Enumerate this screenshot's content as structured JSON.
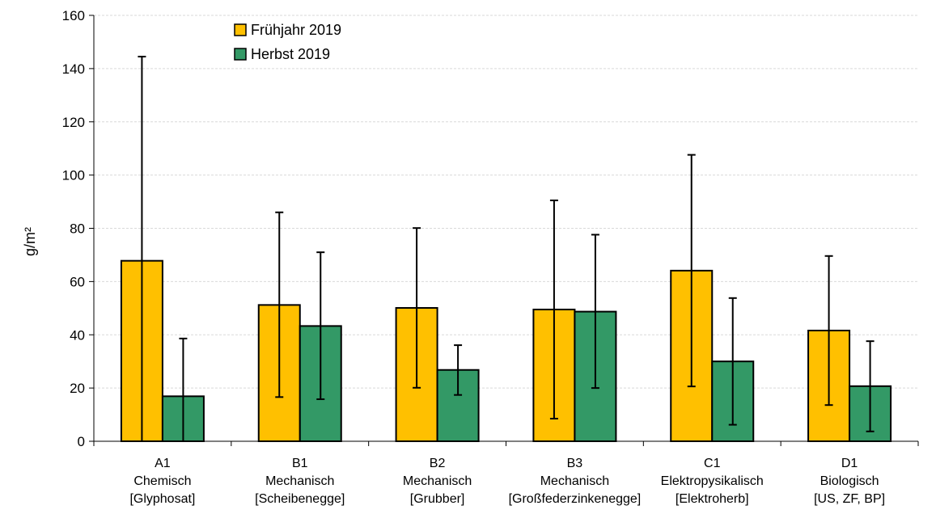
{
  "chart_data": {
    "type": "bar",
    "title": "",
    "xlabel": "",
    "ylabel": "g/m²",
    "ylim": [
      0,
      160
    ],
    "yticks": [
      0,
      20,
      40,
      60,
      80,
      100,
      120,
      140,
      160
    ],
    "grid": true,
    "legend_position": "top-left",
    "categories": [
      [
        "A1",
        "Chemisch",
        "[Glyphosat]"
      ],
      [
        "B1",
        "Mechanisch",
        "[Scheibenegge]"
      ],
      [
        "B2",
        "Mechanisch",
        "[Grubber]"
      ],
      [
        "B3",
        "Mechanisch",
        "[Großfederzinkenegge]"
      ],
      [
        "C1",
        "Elektropysikalisch",
        "[Elektroherb]"
      ],
      [
        "D1",
        "Biologisch",
        "[US, ZF, BP]"
      ]
    ],
    "series": [
      {
        "name": "Frühjahr 2019",
        "color": "#FFC000",
        "values": [
          67.8,
          51.2,
          50.1,
          49.5,
          64.1,
          41.6
        ],
        "error_low": [
          0,
          16.6,
          20.1,
          8.5,
          20.6,
          13.6
        ],
        "error_high": [
          144.5,
          86.0,
          80.1,
          90.5,
          107.6,
          69.6
        ]
      },
      {
        "name": "Herbst 2019",
        "color": "#339966",
        "values": [
          16.9,
          43.3,
          26.8,
          48.7,
          30.0,
          20.7
        ],
        "error_low": [
          0,
          15.8,
          17.4,
          20.0,
          6.2,
          3.7
        ],
        "error_high": [
          38.6,
          71.0,
          36.1,
          77.6,
          53.8,
          37.6
        ]
      }
    ]
  }
}
